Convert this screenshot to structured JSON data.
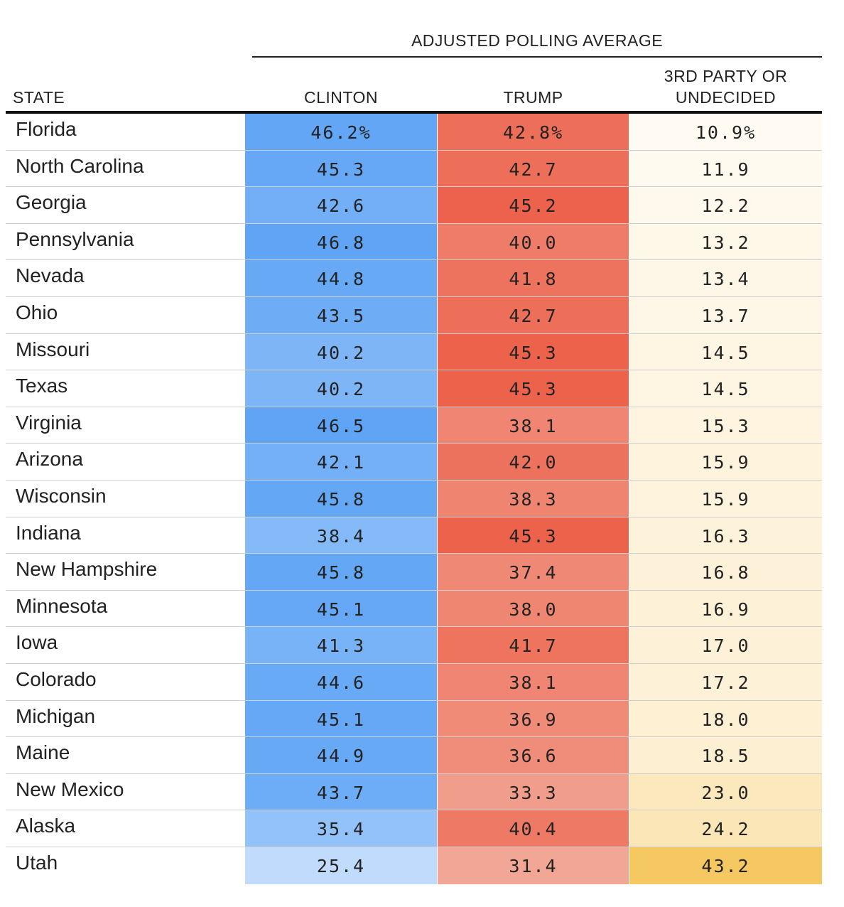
{
  "header": {
    "group_title": "ADJUSTED POLLING AVERAGE",
    "col_state": "STATE",
    "col_clinton": "CLINTON",
    "col_trump": "TRUMP",
    "col_other_line1": "3RD PARTY OR",
    "col_other_line2": "UNDECIDED"
  },
  "colors": {
    "clinton_strong": "#5fa4f5",
    "clinton_light": "#c2dcfc",
    "trump_strong": "#ec614a",
    "trump_light": "#f2a898",
    "other_light": "#fffcf5",
    "other_strong": "#f6c862"
  },
  "chart_data": {
    "type": "table",
    "columns": [
      "STATE",
      "CLINTON",
      "TRUMP",
      "3RD PARTY OR UNDECIDED"
    ],
    "rows": [
      {
        "state": "Florida",
        "clinton": "46.2%",
        "trump": "42.8%",
        "other": "10.9%",
        "c": 46.2,
        "t": 42.8,
        "o": 10.9
      },
      {
        "state": "North Carolina",
        "clinton": "45.3",
        "trump": "42.7",
        "other": "11.9",
        "c": 45.3,
        "t": 42.7,
        "o": 11.9
      },
      {
        "state": "Georgia",
        "clinton": "42.6",
        "trump": "45.2",
        "other": "12.2",
        "c": 42.6,
        "t": 45.2,
        "o": 12.2
      },
      {
        "state": "Pennsylvania",
        "clinton": "46.8",
        "trump": "40.0",
        "other": "13.2",
        "c": 46.8,
        "t": 40.0,
        "o": 13.2
      },
      {
        "state": "Nevada",
        "clinton": "44.8",
        "trump": "41.8",
        "other": "13.4",
        "c": 44.8,
        "t": 41.8,
        "o": 13.4
      },
      {
        "state": "Ohio",
        "clinton": "43.5",
        "trump": "42.7",
        "other": "13.7",
        "c": 43.5,
        "t": 42.7,
        "o": 13.7
      },
      {
        "state": "Missouri",
        "clinton": "40.2",
        "trump": "45.3",
        "other": "14.5",
        "c": 40.2,
        "t": 45.3,
        "o": 14.5
      },
      {
        "state": "Texas",
        "clinton": "40.2",
        "trump": "45.3",
        "other": "14.5",
        "c": 40.2,
        "t": 45.3,
        "o": 14.5
      },
      {
        "state": "Virginia",
        "clinton": "46.5",
        "trump": "38.1",
        "other": "15.3",
        "c": 46.5,
        "t": 38.1,
        "o": 15.3
      },
      {
        "state": "Arizona",
        "clinton": "42.1",
        "trump": "42.0",
        "other": "15.9",
        "c": 42.1,
        "t": 42.0,
        "o": 15.9
      },
      {
        "state": "Wisconsin",
        "clinton": "45.8",
        "trump": "38.3",
        "other": "15.9",
        "c": 45.8,
        "t": 38.3,
        "o": 15.9
      },
      {
        "state": "Indiana",
        "clinton": "38.4",
        "trump": "45.3",
        "other": "16.3",
        "c": 38.4,
        "t": 45.3,
        "o": 16.3
      },
      {
        "state": "New Hampshire",
        "clinton": "45.8",
        "trump": "37.4",
        "other": "16.8",
        "c": 45.8,
        "t": 37.4,
        "o": 16.8
      },
      {
        "state": "Minnesota",
        "clinton": "45.1",
        "trump": "38.0",
        "other": "16.9",
        "c": 45.1,
        "t": 38.0,
        "o": 16.9
      },
      {
        "state": "Iowa",
        "clinton": "41.3",
        "trump": "41.7",
        "other": "17.0",
        "c": 41.3,
        "t": 41.7,
        "o": 17.0
      },
      {
        "state": "Colorado",
        "clinton": "44.6",
        "trump": "38.1",
        "other": "17.2",
        "c": 44.6,
        "t": 38.1,
        "o": 17.2
      },
      {
        "state": "Michigan",
        "clinton": "45.1",
        "trump": "36.9",
        "other": "18.0",
        "c": 45.1,
        "t": 36.9,
        "o": 18.0
      },
      {
        "state": "Maine",
        "clinton": "44.9",
        "trump": "36.6",
        "other": "18.5",
        "c": 44.9,
        "t": 36.6,
        "o": 18.5
      },
      {
        "state": "New Mexico",
        "clinton": "43.7",
        "trump": "33.3",
        "other": "23.0",
        "c": 43.7,
        "t": 33.3,
        "o": 23.0
      },
      {
        "state": "Alaska",
        "clinton": "35.4",
        "trump": "40.4",
        "other": "24.2",
        "c": 35.4,
        "t": 40.4,
        "o": 24.2
      },
      {
        "state": "Utah",
        "clinton": "25.4",
        "trump": "31.4",
        "other": "43.2",
        "c": 25.4,
        "t": 31.4,
        "o": 43.2
      }
    ]
  }
}
